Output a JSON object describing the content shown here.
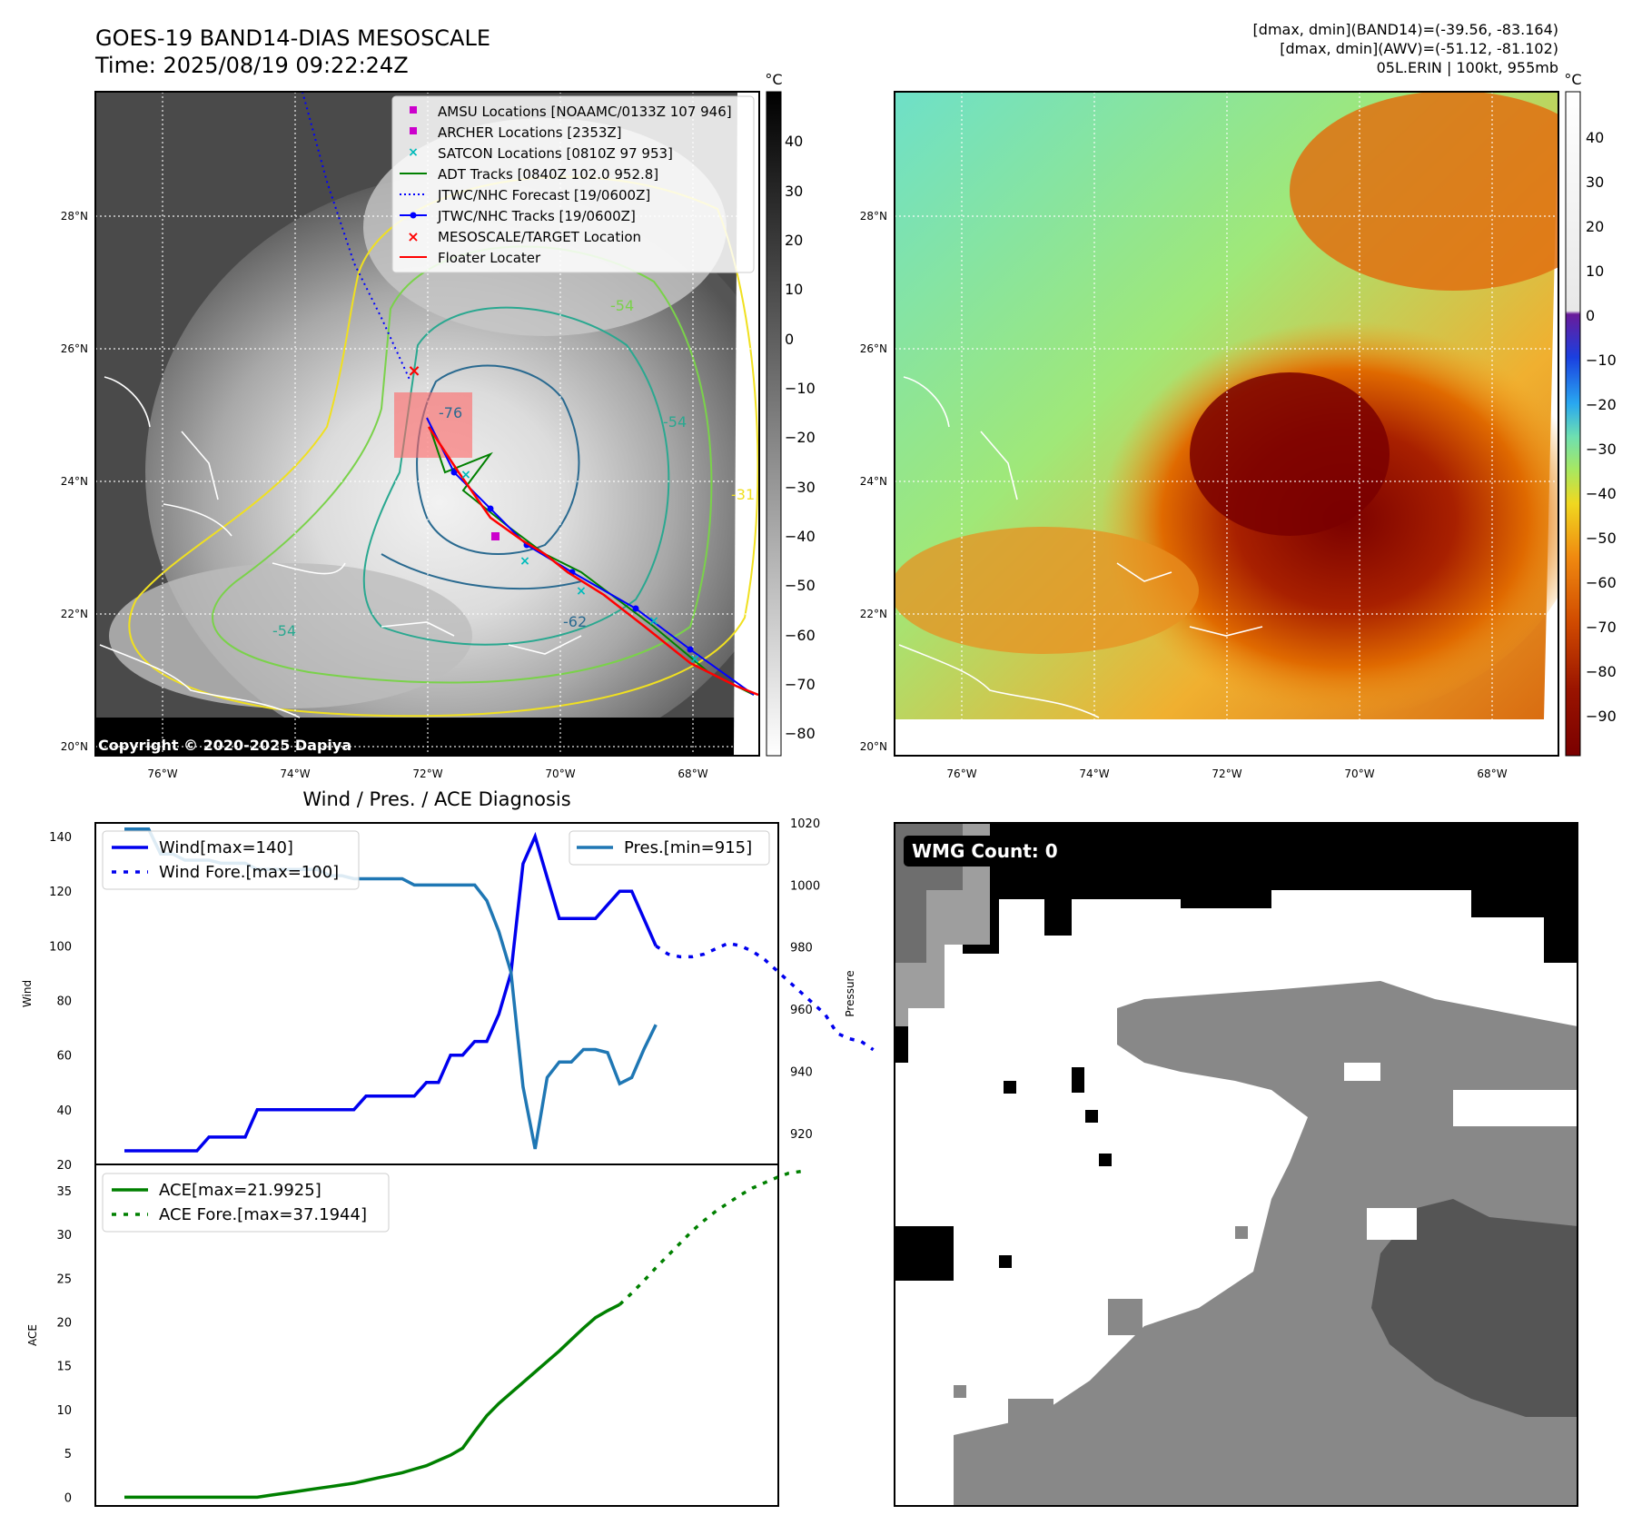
{
  "header": {
    "title_line1": "GOES-19 BAND14-DIAS MESOSCALE",
    "title_line2": "Time: 2025/08/19 09:22:24Z",
    "stats_line1": "[dmax, dmin](BAND14)=(-39.56, -83.164)",
    "stats_line2": "[dmax, dmin](AWV)=(-51.12, -81.102)",
    "stats_line3": "05L.ERIN | 100kt, 955mb"
  },
  "colors": {
    "wind": "#0000ee",
    "pressure": "#1f77b4",
    "ace": "#008000",
    "track": "#ff0000",
    "jtwc_track": "#0000ff",
    "adt": "#008000",
    "archer": "#cc00cc",
    "satcon": "#00bbbb"
  },
  "map_axes": {
    "lat_ticks": [
      "28°N",
      "26°N",
      "24°N",
      "22°N",
      "20°N"
    ],
    "lon_ticks": [
      "76°W",
      "74°W",
      "72°W",
      "70°W",
      "68°W"
    ],
    "copyright": "Copyright © 2020-2025 Dapiya"
  },
  "ir_colorbar": {
    "unit": "°C",
    "ticks": [
      "40",
      "30",
      "20",
      "10",
      "0",
      "−10",
      "−20",
      "−30",
      "−40",
      "−50",
      "−60",
      "−70",
      "−80"
    ]
  },
  "awv_colorbar": {
    "unit": "°C",
    "ticks": [
      "40",
      "30",
      "20",
      "10",
      "0",
      "−10",
      "−20",
      "−30",
      "−40",
      "−50",
      "−60",
      "−70",
      "−80",
      "−90"
    ]
  },
  "contour_labels": [
    "-76",
    "-54",
    "-54",
    "-54",
    "-31",
    "-62"
  ],
  "legend": {
    "items": [
      {
        "label": "AMSU Locations [NOAAMC/0133Z 107 946]",
        "marker": "square",
        "color": "#cc00cc"
      },
      {
        "label": "ARCHER Locations [2353Z]",
        "marker": "square",
        "color": "#cc00cc"
      },
      {
        "label": "SATCON Locations [0810Z 97 953]",
        "marker": "x",
        "color": "#00bbbb"
      },
      {
        "label": "ADT Tracks [0840Z 102.0 952.8]",
        "marker": "line",
        "color": "#008000"
      },
      {
        "label": "JTWC/NHC Forecast [19/0600Z]",
        "marker": "dotted",
        "color": "#0000ff"
      },
      {
        "label": "JTWC/NHC Tracks [19/0600Z]",
        "marker": "line-dot",
        "color": "#0000ff"
      },
      {
        "label": "MESOSCALE/TARGET Location",
        "marker": "x",
        "color": "#ff0000"
      },
      {
        "label": "Floater Locater",
        "marker": "line",
        "color": "#ff0000"
      }
    ]
  },
  "wmg": {
    "label": "WMG Count: 0"
  },
  "chart_data": [
    {
      "type": "line",
      "title": "Wind / Pres. / ACE Diagnosis",
      "ylabel": "Wind",
      "ylim": [
        20,
        145
      ],
      "y_ticks": [
        20,
        40,
        60,
        80,
        100,
        120,
        140
      ],
      "y2label": "Pressure",
      "y2lim": [
        910,
        1020
      ],
      "y2_ticks": [
        920,
        940,
        960,
        980,
        1000,
        1020
      ],
      "series": [
        {
          "name": "Wind[max=140]",
          "style": "solid",
          "values": [
            25,
            25,
            25,
            25,
            25,
            25,
            25,
            30,
            30,
            30,
            30,
            40,
            40,
            40,
            40,
            40,
            40,
            40,
            40,
            40,
            45,
            45,
            45,
            45,
            45,
            50,
            50,
            60,
            60,
            65,
            65,
            75,
            90,
            130,
            140,
            125,
            110,
            110,
            110,
            110,
            115,
            120,
            120,
            110,
            100
          ]
        },
        {
          "name": "Wind Fore.[max=100]",
          "style": "dotted",
          "x_start": 44,
          "values": [
            100,
            97,
            96,
            96,
            97,
            99,
            101,
            100,
            98,
            95,
            91,
            87,
            83,
            79,
            75,
            68,
            66,
            65,
            62
          ]
        },
        {
          "name": "Pres.[min=915]",
          "style": "solid",
          "axis": "y2",
          "values": [
            1018,
            1018,
            1018,
            1010,
            1010,
            1008,
            1008,
            1008,
            1007,
            1007,
            1007,
            1005,
            1005,
            1005,
            1005,
            1005,
            1005,
            1003,
            1003,
            1002,
            1002,
            1002,
            1002,
            1002,
            1000,
            1000,
            1000,
            1000,
            1000,
            1000,
            995,
            985,
            972,
            935,
            915,
            938,
            943,
            943,
            947,
            947,
            946,
            936,
            938,
            947,
            955
          ]
        }
      ]
    },
    {
      "type": "line",
      "ylabel": "ACE",
      "ylim": [
        -1,
        38
      ],
      "y_ticks": [
        0,
        5,
        10,
        15,
        20,
        25,
        30,
        35
      ],
      "series": [
        {
          "name": "ACE[max=21.9925]",
          "style": "solid",
          "values": [
            0,
            0,
            0,
            0,
            0,
            0,
            0,
            0,
            0,
            0,
            0,
            0,
            0.2,
            0.4,
            0.6,
            0.8,
            1.0,
            1.2,
            1.4,
            1.6,
            1.9,
            2.2,
            2.5,
            2.8,
            3.2,
            3.6,
            4.2,
            4.8,
            5.6,
            7.5,
            9.3,
            10.7,
            11.9,
            13.1,
            14.3,
            15.5,
            16.7,
            18.0,
            19.3,
            20.5,
            21.3,
            22.0
          ]
        },
        {
          "name": "ACE Fore.[max=37.1944]",
          "style": "dotted",
          "x_start": 41,
          "values": [
            22.0,
            23.3,
            24.7,
            26.2,
            27.6,
            29.0,
            30.4,
            31.6,
            32.7,
            33.6,
            34.5,
            35.3,
            35.9,
            36.5,
            37.0,
            37.2
          ]
        }
      ]
    }
  ]
}
